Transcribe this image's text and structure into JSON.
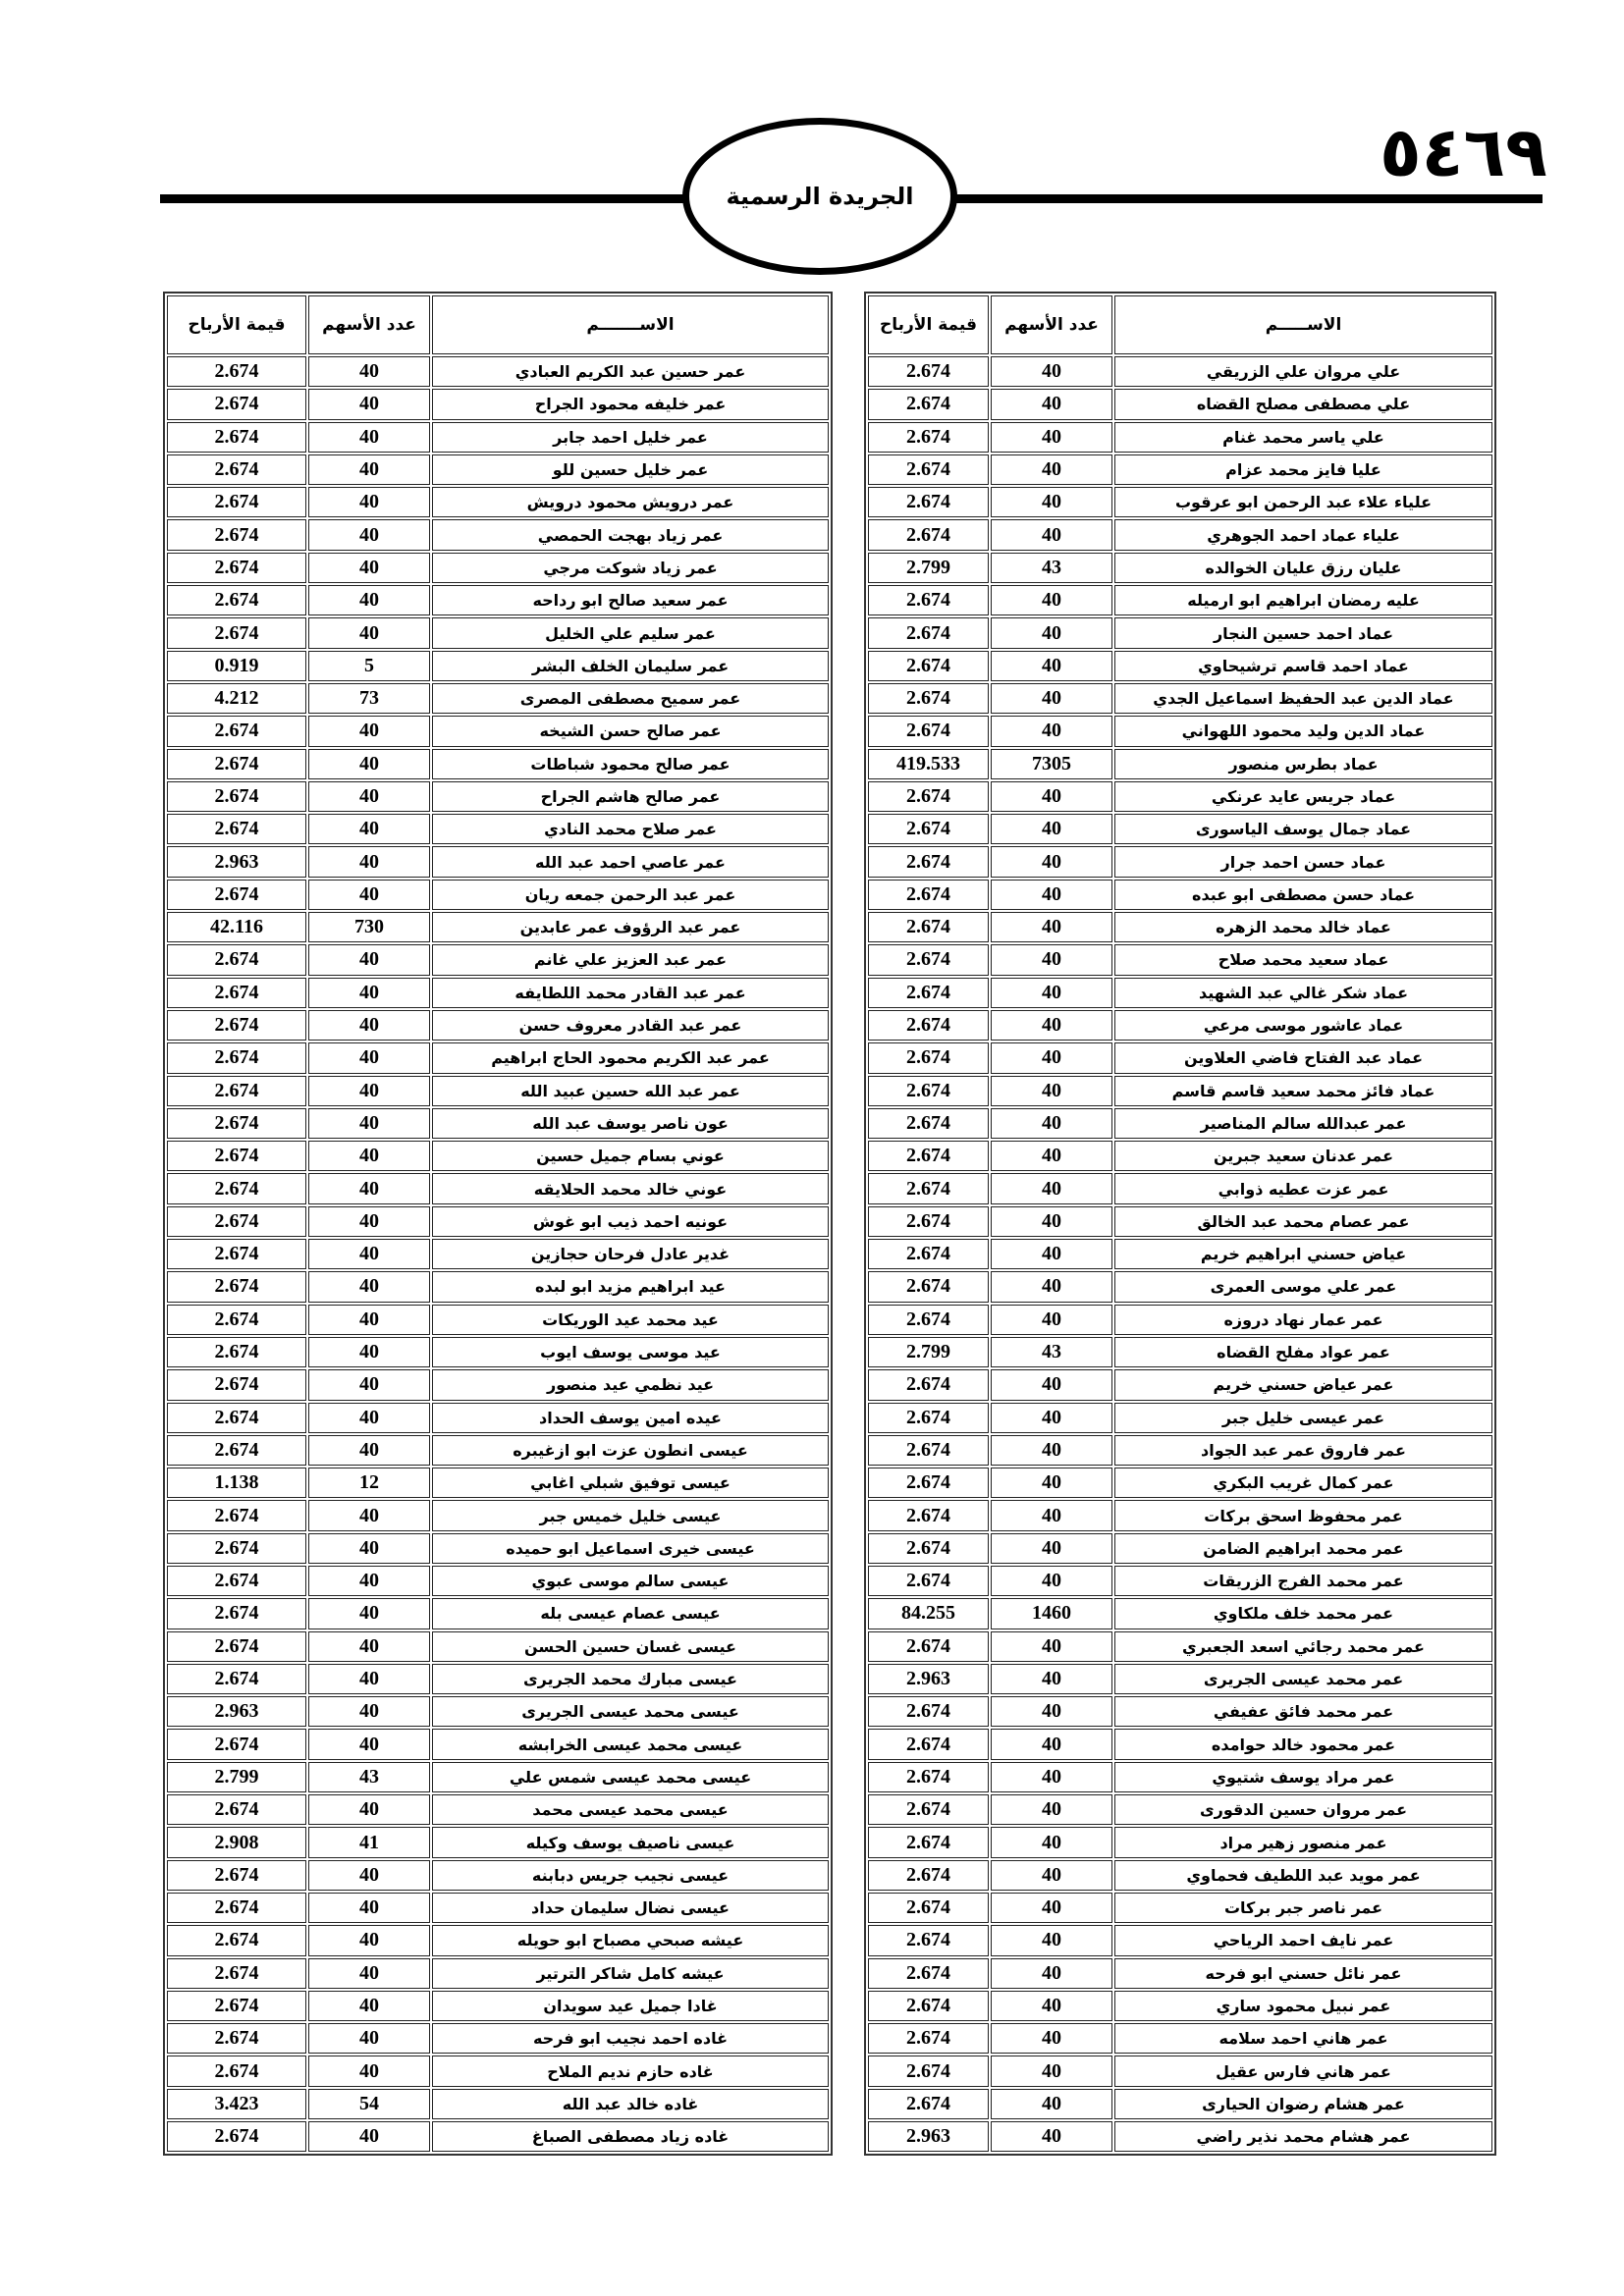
{
  "header": {
    "page_number": "٥٤٦٩",
    "gazette_title": "الجريدة الرسمية"
  },
  "columns": {
    "right": {
      "name": "الاســـــم",
      "shares": "عدد الأسهم",
      "profit": "قيمة الأرباح"
    },
    "left": {
      "name": "الاســـــــم",
      "shares": "عدد الأسهم",
      "profit": "قيمة الأرباح"
    }
  },
  "right_table": [
    [
      "علي مروان علي الزريقي",
      "40",
      "2.674"
    ],
    [
      "علي مصطفى مصلح القضاه",
      "40",
      "2.674"
    ],
    [
      "علي ياسر محمد غنام",
      "40",
      "2.674"
    ],
    [
      "عليا فايز محمد عزام",
      "40",
      "2.674"
    ],
    [
      "علياء علاء عبد الرحمن ابو عرقوب",
      "40",
      "2.674"
    ],
    [
      "علياء عماد احمد الجوهري",
      "40",
      "2.674"
    ],
    [
      "عليان رزق عليان الخوالده",
      "43",
      "2.799"
    ],
    [
      "عليه رمضان ابراهيم ابو ارميله",
      "40",
      "2.674"
    ],
    [
      "عماد احمد حسين النجار",
      "40",
      "2.674"
    ],
    [
      "عماد احمد قاسم ترشيحاوي",
      "40",
      "2.674"
    ],
    [
      "عماد الدين عبد الحفيظ اسماعيل الجدي",
      "40",
      "2.674"
    ],
    [
      "عماد الدين وليد محمود اللهواني",
      "40",
      "2.674"
    ],
    [
      "عماد بطرس منصور",
      "7305",
      "419.533"
    ],
    [
      "عماد جريس عايد عرنكي",
      "40",
      "2.674"
    ],
    [
      "عماد جمال يوسف الياسورى",
      "40",
      "2.674"
    ],
    [
      "عماد حسن احمد جرار",
      "40",
      "2.674"
    ],
    [
      "عماد حسن مصطفى ابو عبده",
      "40",
      "2.674"
    ],
    [
      "عماد خالد محمد الزهره",
      "40",
      "2.674"
    ],
    [
      "عماد سعيد محمد صلاح",
      "40",
      "2.674"
    ],
    [
      "عماد شكر غالي عبد الشهيد",
      "40",
      "2.674"
    ],
    [
      "عماد عاشور موسى مرعي",
      "40",
      "2.674"
    ],
    [
      "عماد عبد الفتاح فاضي العلاوين",
      "40",
      "2.674"
    ],
    [
      "عماد فائز محمد سعيد قاسم قاسم",
      "40",
      "2.674"
    ],
    [
      "عمر عبدالله سالم المناصير",
      "40",
      "2.674"
    ],
    [
      "عمر عدنان سعيد جبرين",
      "40",
      "2.674"
    ],
    [
      "عمر عزت عطيه ذوابي",
      "40",
      "2.674"
    ],
    [
      "عمر عصام محمد عبد الخالق",
      "40",
      "2.674"
    ],
    [
      "عياض حسني ابراهيم خريم",
      "40",
      "2.674"
    ],
    [
      "عمر علي موسى العمرى",
      "40",
      "2.674"
    ],
    [
      "عمر عمار نهاد دروزه",
      "40",
      "2.674"
    ],
    [
      "عمر عواد مفلح القضاه",
      "43",
      "2.799"
    ],
    [
      "عمر عياض حسني خريم",
      "40",
      "2.674"
    ],
    [
      "عمر عيسى خليل جبر",
      "40",
      "2.674"
    ],
    [
      "عمر فاروق عمر عبد الجواد",
      "40",
      "2.674"
    ],
    [
      "عمر كمال غريب البكري",
      "40",
      "2.674"
    ],
    [
      "عمر محفوظ اسحق بركات",
      "40",
      "2.674"
    ],
    [
      "عمر محمد ابراهيم الضامن",
      "40",
      "2.674"
    ],
    [
      "عمر محمد الفرج الزريقات",
      "40",
      "2.674"
    ],
    [
      "عمر محمد خلف ملكاوي",
      "1460",
      "84.255"
    ],
    [
      "عمر محمد رجائي اسعد الجعبري",
      "40",
      "2.674"
    ],
    [
      "عمر محمد عيسى الجريرى",
      "40",
      "2.963"
    ],
    [
      "عمر محمد فائق عفيفي",
      "40",
      "2.674"
    ],
    [
      "عمر محمود خالد حوامده",
      "40",
      "2.674"
    ],
    [
      "عمر مراد يوسف شتيوي",
      "40",
      "2.674"
    ],
    [
      "عمر مروان حسين الدقورى",
      "40",
      "2.674"
    ],
    [
      "عمر منصور زهير مراد",
      "40",
      "2.674"
    ],
    [
      "عمر مويد عبد اللطيف فحماوي",
      "40",
      "2.674"
    ],
    [
      "عمر ناصر جبر بركات",
      "40",
      "2.674"
    ],
    [
      "عمر نايف احمد الرياحي",
      "40",
      "2.674"
    ],
    [
      "عمر نائل حسني ابو فرحه",
      "40",
      "2.674"
    ],
    [
      "عمر نبيل محمود ساري",
      "40",
      "2.674"
    ],
    [
      "عمر هاني احمد سلامه",
      "40",
      "2.674"
    ],
    [
      "عمر هاني فارس عقيل",
      "40",
      "2.674"
    ],
    [
      "عمر هشام رضوان الحيارى",
      "40",
      "2.674"
    ],
    [
      "عمر هشام محمد نذير راضي",
      "40",
      "2.963"
    ]
  ],
  "left_table": [
    [
      "عمر حسين عبد الكريم العبادي",
      "40",
      "2.674"
    ],
    [
      "عمر خليفه محمود الجراح",
      "40",
      "2.674"
    ],
    [
      "عمر خليل احمد جابر",
      "40",
      "2.674"
    ],
    [
      "عمر خليل حسين للو",
      "40",
      "2.674"
    ],
    [
      "عمر درويش محمود درويش",
      "40",
      "2.674"
    ],
    [
      "عمر زياد بهجت الحمصي",
      "40",
      "2.674"
    ],
    [
      "عمر زياد شوكت مرجي",
      "40",
      "2.674"
    ],
    [
      "عمر سعيد صالح ابو رداحه",
      "40",
      "2.674"
    ],
    [
      "عمر سليم علي الخليل",
      "40",
      "2.674"
    ],
    [
      "عمر سليمان الخلف البشر",
      "5",
      "0.919"
    ],
    [
      "عمر سميح مصطفى المصرى",
      "73",
      "4.212"
    ],
    [
      "عمر صالح حسن الشيخه",
      "40",
      "2.674"
    ],
    [
      "عمر صالح محمود شباطات",
      "40",
      "2.674"
    ],
    [
      "عمر صالح هاشم الجراح",
      "40",
      "2.674"
    ],
    [
      "عمر صلاح محمد النادي",
      "40",
      "2.674"
    ],
    [
      "عمر عاصي احمد عبد الله",
      "40",
      "2.963"
    ],
    [
      "عمر عبد الرحمن جمعه ريان",
      "40",
      "2.674"
    ],
    [
      "عمر عبد الرؤوف عمر عابدين",
      "730",
      "42.116"
    ],
    [
      "عمر عبد العزيز علي غانم",
      "40",
      "2.674"
    ],
    [
      "عمر عبد القادر محمد اللطايفه",
      "40",
      "2.674"
    ],
    [
      "عمر عبد القادر معروف حسن",
      "40",
      "2.674"
    ],
    [
      "عمر عبد الكريم محمود الحاج ابراهيم",
      "40",
      "2.674"
    ],
    [
      "عمر عبد الله حسين عبيد الله",
      "40",
      "2.674"
    ],
    [
      "عون ناصر يوسف عبد الله",
      "40",
      "2.674"
    ],
    [
      "عوني بسام جميل حسين",
      "40",
      "2.674"
    ],
    [
      "عوني خالد محمد الحلايقه",
      "40",
      "2.674"
    ],
    [
      "عونيه احمد ذيب ابو غوش",
      "40",
      "2.674"
    ],
    [
      "غدير عادل فرحان حجازين",
      "40",
      "2.674"
    ],
    [
      "عيد ابراهيم مزيد ابو لبده",
      "40",
      "2.674"
    ],
    [
      "عيد محمد عيد الوريكات",
      "40",
      "2.674"
    ],
    [
      "عيد موسى يوسف ايوب",
      "40",
      "2.674"
    ],
    [
      "عيد نظمي عيد منصور",
      "40",
      "2.674"
    ],
    [
      "عيده امين يوسف الحداد",
      "40",
      "2.674"
    ],
    [
      "عيسى انطون عزت ابو ازغيبره",
      "40",
      "2.674"
    ],
    [
      "عيسى توفيق شبلي اغابي",
      "12",
      "1.138"
    ],
    [
      "عيسى خليل خميس جبر",
      "40",
      "2.674"
    ],
    [
      "عيسى خيرى اسماعيل ابو حميده",
      "40",
      "2.674"
    ],
    [
      "عيسى سالم موسى عبوي",
      "40",
      "2.674"
    ],
    [
      "عيسى عصام عيسى بله",
      "40",
      "2.674"
    ],
    [
      "عيسى غسان حسين الحسن",
      "40",
      "2.674"
    ],
    [
      "عيسى مبارك محمد الجريرى",
      "40",
      "2.674"
    ],
    [
      "عيسى محمد عيسى الجريرى",
      "40",
      "2.963"
    ],
    [
      "عيسى محمد عيسى الخرابشه",
      "40",
      "2.674"
    ],
    [
      "عيسى محمد عيسى شمس علي",
      "43",
      "2.799"
    ],
    [
      "عيسى محمد عيسى محمد",
      "40",
      "2.674"
    ],
    [
      "عيسى ناصيف يوسف وكيله",
      "41",
      "2.908"
    ],
    [
      "عيسى نجيب جريس دبابنه",
      "40",
      "2.674"
    ],
    [
      "عيسى نضال سليمان حداد",
      "40",
      "2.674"
    ],
    [
      "عيشه صبحي مصباح ابو حويله",
      "40",
      "2.674"
    ],
    [
      "عيشه كامل شاكر الترتير",
      "40",
      "2.674"
    ],
    [
      "غادا جميل عيد سويدان",
      "40",
      "2.674"
    ],
    [
      "غاده احمد نجيب ابو فرحه",
      "40",
      "2.674"
    ],
    [
      "غاده حازم نديم الملاح",
      "40",
      "2.674"
    ],
    [
      "غاده خالد عبد الله",
      "54",
      "3.423"
    ],
    [
      "غاده زياد مصطفى الصباغ",
      "40",
      "2.674"
    ]
  ]
}
